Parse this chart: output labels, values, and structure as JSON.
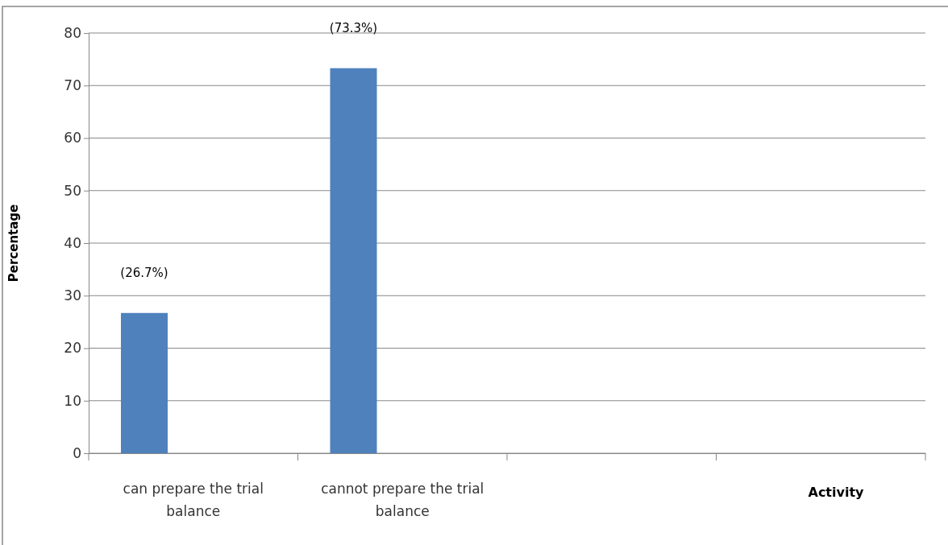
{
  "chart_data": {
    "type": "bar",
    "xlabel": "Activity",
    "ylabel": "Percentage",
    "categories": [
      "can prepare the trial balance",
      "cannot prepare the trial balance",
      null,
      null
    ],
    "values": [
      26.7,
      73.3,
      null,
      null
    ],
    "value_labels": [
      "(26.7%)",
      "(73.3%)",
      null,
      null
    ],
    "color": "#4f81bd",
    "ylim": [
      0,
      80
    ],
    "yticks": [
      0,
      10,
      20,
      30,
      40,
      50,
      60,
      70,
      80
    ],
    "grid": "y"
  }
}
